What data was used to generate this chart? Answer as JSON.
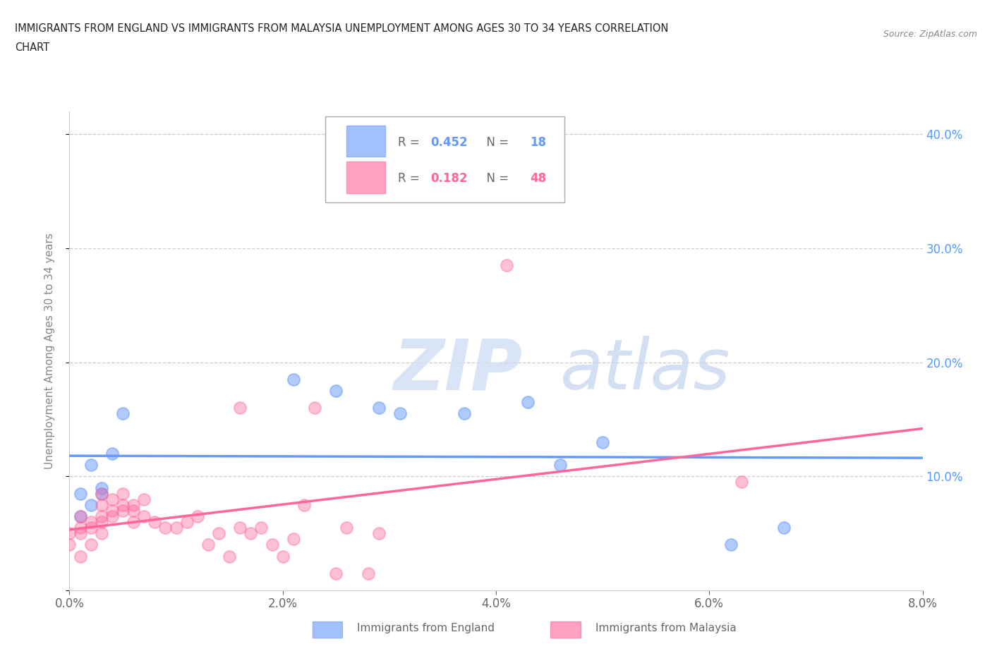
{
  "title_line1": "IMMIGRANTS FROM ENGLAND VS IMMIGRANTS FROM MALAYSIA UNEMPLOYMENT AMONG AGES 30 TO 34 YEARS CORRELATION",
  "title_line2": "CHART",
  "source": "Source: ZipAtlas.com",
  "ylabel": "Unemployment Among Ages 30 to 34 years",
  "xlim": [
    0.0,
    0.08
  ],
  "ylim": [
    0.0,
    0.42
  ],
  "england_color": "#6699ff",
  "malaysia_color": "#ff6699",
  "england_R": 0.452,
  "england_N": 18,
  "malaysia_R": 0.182,
  "malaysia_N": 48,
  "england_x": [
    0.001,
    0.001,
    0.002,
    0.002,
    0.003,
    0.003,
    0.004,
    0.005,
    0.021,
    0.025,
    0.029,
    0.031,
    0.037,
    0.043,
    0.046,
    0.05,
    0.062,
    0.067
  ],
  "england_y": [
    0.065,
    0.085,
    0.075,
    0.11,
    0.085,
    0.09,
    0.12,
    0.155,
    0.185,
    0.175,
    0.16,
    0.155,
    0.155,
    0.165,
    0.11,
    0.13,
    0.04,
    0.055
  ],
  "malaysia_x": [
    0.0,
    0.0,
    0.001,
    0.001,
    0.001,
    0.001,
    0.002,
    0.002,
    0.002,
    0.003,
    0.003,
    0.003,
    0.003,
    0.003,
    0.004,
    0.004,
    0.004,
    0.005,
    0.005,
    0.005,
    0.006,
    0.006,
    0.006,
    0.007,
    0.007,
    0.008,
    0.009,
    0.01,
    0.011,
    0.012,
    0.013,
    0.014,
    0.015,
    0.016,
    0.016,
    0.017,
    0.018,
    0.019,
    0.02,
    0.021,
    0.022,
    0.023,
    0.025,
    0.026,
    0.028,
    0.029,
    0.041,
    0.063
  ],
  "malaysia_y": [
    0.04,
    0.05,
    0.03,
    0.05,
    0.055,
    0.065,
    0.04,
    0.055,
    0.06,
    0.05,
    0.06,
    0.065,
    0.075,
    0.085,
    0.065,
    0.07,
    0.08,
    0.07,
    0.075,
    0.085,
    0.06,
    0.07,
    0.075,
    0.065,
    0.08,
    0.06,
    0.055,
    0.055,
    0.06,
    0.065,
    0.04,
    0.05,
    0.03,
    0.055,
    0.16,
    0.05,
    0.055,
    0.04,
    0.03,
    0.045,
    0.075,
    0.16,
    0.015,
    0.055,
    0.015,
    0.05,
    0.285,
    0.095
  ],
  "ytick_vals": [
    0.0,
    0.1,
    0.2,
    0.3,
    0.4
  ],
  "ytick_labels": [
    "",
    "10.0%",
    "20.0%",
    "30.0%",
    "40.0%"
  ],
  "xtick_vals": [
    0.0,
    0.02,
    0.04,
    0.06,
    0.08
  ],
  "xtick_labels": [
    "0.0%",
    "2.0%",
    "4.0%",
    "6.0%",
    "8.0%"
  ],
  "grid_color": "#cccccc",
  "background_color": "#ffffff",
  "watermark_zip_color": "#d0dff5",
  "watermark_atlas_color": "#c8d8f0"
}
